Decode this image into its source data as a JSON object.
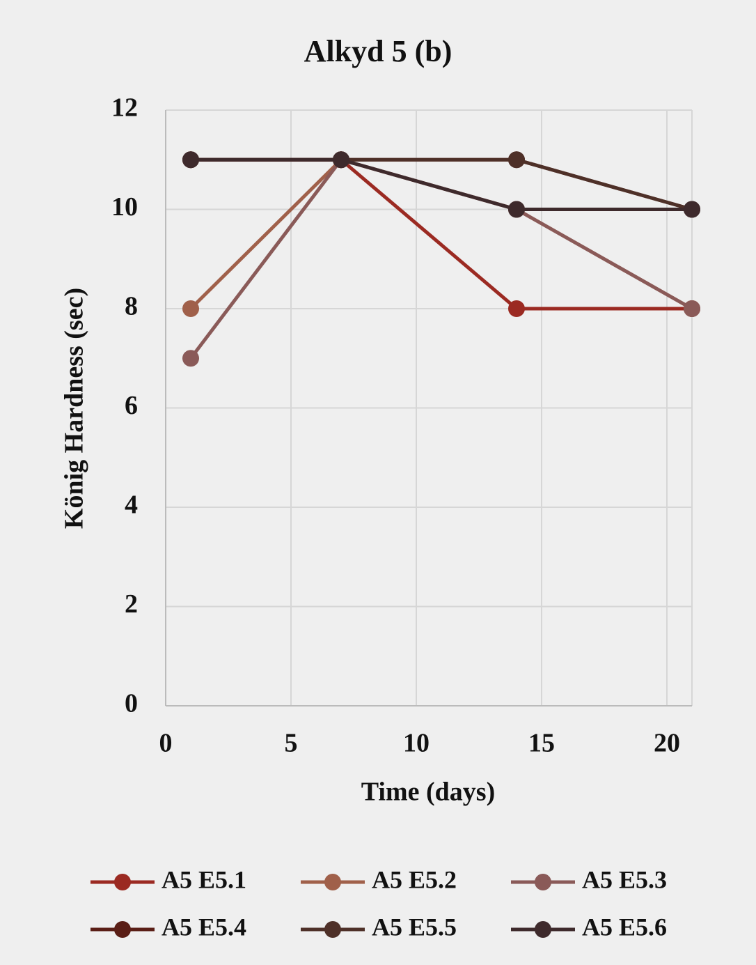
{
  "chart_data": {
    "type": "line",
    "title": "Alkyd  5 (b)",
    "x_label": "Time (days)",
    "y_label": "König Hardness (sec)",
    "x": [
      1,
      7,
      14,
      21
    ],
    "series": [
      {
        "name": "A5 E5.1",
        "color": "#9b2a22",
        "values": [
          11,
          11,
          8,
          8
        ]
      },
      {
        "name": "A5 E5.2",
        "color": "#a0604a",
        "values": [
          8,
          11,
          10,
          8
        ]
      },
      {
        "name": "A5 E5.3",
        "color": "#8a5a58",
        "values": [
          7,
          11,
          10,
          8
        ]
      },
      {
        "name": "A5 E5.4",
        "color": "#5a1e16",
        "values": [
          11,
          11,
          11,
          10
        ]
      },
      {
        "name": "A5 E5.5",
        "color": "#4e3028",
        "values": [
          11,
          11,
          11,
          10
        ]
      },
      {
        "name": "A5 E5.6",
        "color": "#3e2a2c",
        "values": [
          11,
          11,
          10,
          10
        ]
      }
    ],
    "xlim": [
      0,
      21
    ],
    "xticks": [
      0,
      5,
      10,
      15,
      20
    ],
    "ylim": [
      0,
      12
    ],
    "yticks": [
      0,
      2,
      4,
      6,
      8,
      10,
      12
    ],
    "grid": true
  }
}
